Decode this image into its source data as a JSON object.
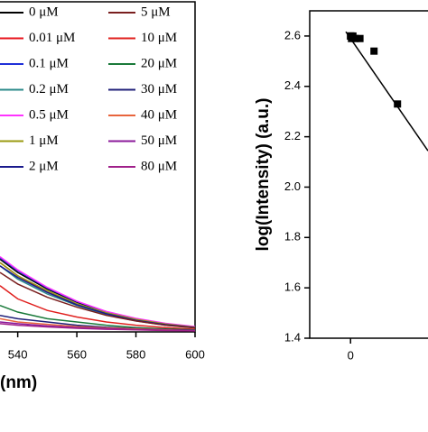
{
  "chart_data": [
    {
      "type": "line",
      "x_label": "(nm)",
      "x": [
        534,
        540,
        550,
        560,
        570,
        580,
        590,
        600
      ],
      "xlim": [
        534,
        600
      ],
      "xticks": [
        540,
        560,
        580,
        600
      ],
      "ylim": [
        0,
        100
      ],
      "series": [
        {
          "name": "0 μM",
          "color": "#000000",
          "values": [
            22,
            18,
            13,
            9,
            6,
            4,
            2.5,
            1.5
          ]
        },
        {
          "name": "0.01 μM",
          "color": "#e8141c",
          "values": [
            21,
            17,
            12,
            8.5,
            5.5,
            3.5,
            2.3,
            1.4
          ]
        },
        {
          "name": "0.1 μM",
          "color": "#1f2fd8",
          "values": [
            22.5,
            18.5,
            13.3,
            9.2,
            6.1,
            4,
            2.5,
            1.5
          ]
        },
        {
          "name": "0.2 μM",
          "color": "#2a8a8a",
          "values": [
            20,
            16,
            11.5,
            8,
            5.2,
            3.3,
            2,
            1.3
          ]
        },
        {
          "name": "0.5 μM",
          "color": "#ff33ff",
          "values": [
            22.8,
            18.8,
            13.5,
            9.3,
            6.2,
            4.1,
            2.6,
            1.6
          ]
        },
        {
          "name": "1 μM",
          "color": "#9a9a10",
          "values": [
            21,
            17,
            12.5,
            8.5,
            5.8,
            3.8,
            2.4,
            1.4
          ]
        },
        {
          "name": "2 μM",
          "color": "#1a1a8c",
          "values": [
            20,
            16.5,
            12,
            8.2,
            5.5,
            3.5,
            2.2,
            1.3
          ]
        },
        {
          "name": "5 μM",
          "color": "#7a1f1f",
          "values": [
            18,
            14.5,
            10.5,
            7.5,
            5,
            3.3,
            2,
            1.2
          ]
        },
        {
          "name": "10 μM",
          "color": "#e0201e",
          "values": [
            14,
            10,
            6.5,
            4.5,
            3,
            2,
            1.3,
            0.8
          ]
        },
        {
          "name": "20 μM",
          "color": "#1a7a3a",
          "values": [
            8,
            6,
            4,
            3,
            2,
            1.3,
            0.9,
            0.6
          ]
        },
        {
          "name": "30 μM",
          "color": "#20207a",
          "values": [
            5,
            4,
            3,
            2,
            1.4,
            1,
            0.7,
            0.5
          ]
        },
        {
          "name": "40 μM",
          "color": "#e8643c",
          "values": [
            4,
            3,
            2.3,
            1.6,
            1.2,
            0.9,
            0.6,
            0.4
          ]
        },
        {
          "name": "50 μM",
          "color": "#8b1a9a",
          "values": [
            3,
            2.5,
            1.8,
            1.3,
            1,
            0.7,
            0.5,
            0.4
          ]
        },
        {
          "name": "80 μM",
          "color": "#a0208a",
          "values": [
            2.5,
            2,
            1.5,
            1.1,
            0.8,
            0.6,
            0.4,
            0.3
          ]
        }
      ]
    },
    {
      "type": "scatter",
      "y_label": "log(Intensity) (a.u.)",
      "xlim": [
        -8.7,
        16.5
      ],
      "xticks": [
        0
      ],
      "ylim": [
        1.4,
        2.7
      ],
      "yticks": [
        {
          "value": 1.4,
          "label": "1.4"
        },
        {
          "value": 1.6,
          "label": "1.6"
        },
        {
          "value": 1.8,
          "label": "1.8"
        },
        {
          "value": 2.0,
          "label": "2.0"
        },
        {
          "value": 2.2,
          "label": "2.2"
        },
        {
          "value": 2.4,
          "label": "2.4"
        },
        {
          "value": 2.6,
          "label": "2.6"
        }
      ],
      "series": [
        {
          "mode": "markers",
          "color": "#000000",
          "x": [
            0,
            0.01,
            0.1,
            0.2,
            0.5,
            1,
            2,
            5,
            10
          ],
          "values": [
            2.6,
            2.6,
            2.6,
            2.59,
            2.6,
            2.59,
            2.59,
            2.54,
            2.33
          ]
        },
        {
          "mode": "line",
          "color": "#000000",
          "x": [
            -1,
            16.5
          ],
          "values": [
            2.617,
            2.144
          ]
        }
      ]
    }
  ]
}
